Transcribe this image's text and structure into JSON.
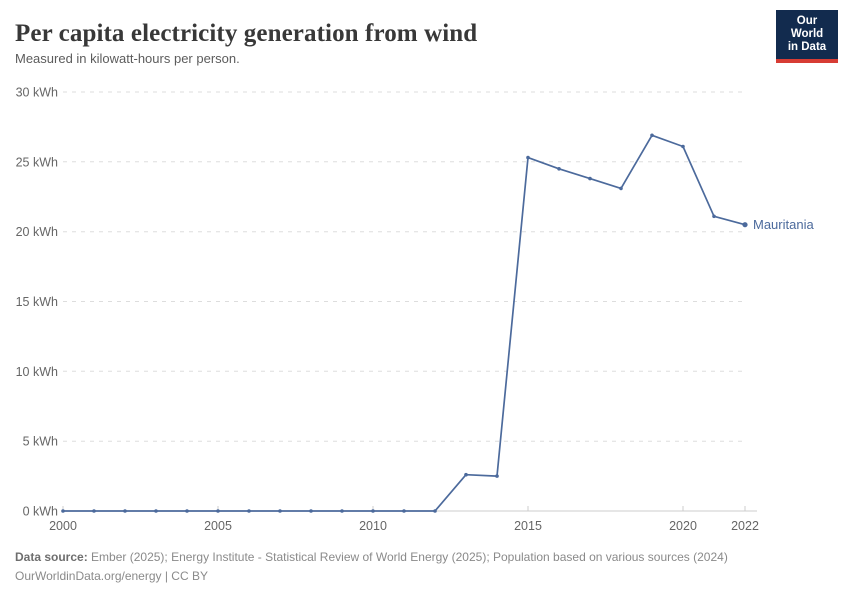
{
  "header": {
    "title": "Per capita electricity generation from wind",
    "subtitle": "Measured in kilowatt-hours per person.",
    "logo": {
      "line1": "Our World",
      "line2": "in Data"
    }
  },
  "footer": {
    "source_label": "Data source:",
    "source_text": "Ember (2025); Energy Institute - Statistical Review of World Energy (2025); Population based on various sources (2024)",
    "citation_line": "OurWorldinData.org/energy | CC BY"
  },
  "chart_data": {
    "type": "line",
    "title": "Per capita electricity generation from wind",
    "subtitle": "Measured in kilowatt-hours per person.",
    "xlabel": "",
    "ylabel": "",
    "x": [
      2000,
      2001,
      2002,
      2003,
      2004,
      2005,
      2006,
      2007,
      2008,
      2009,
      2010,
      2011,
      2012,
      2013,
      2014,
      2015,
      2016,
      2017,
      2018,
      2019,
      2020,
      2021,
      2022
    ],
    "series": [
      {
        "name": "Mauritania",
        "color": "#4c6a9c",
        "values": [
          0,
          0,
          0,
          0,
          0,
          0,
          0,
          0,
          0,
          0,
          0,
          0,
          0,
          2.6,
          2.5,
          25.3,
          24.5,
          23.8,
          23.1,
          26.9,
          26.1,
          21.1,
          20.5
        ]
      }
    ],
    "xlim": [
      2000,
      2022
    ],
    "ylim": [
      0,
      30
    ],
    "x_ticks": [
      2000,
      2005,
      2010,
      2015,
      2020,
      2022
    ],
    "y_ticks": [
      0,
      5,
      10,
      15,
      20,
      25,
      30
    ],
    "y_tick_suffix": " kWh",
    "grid": "horizontal dashed",
    "legend_position": "end-of-line label",
    "colors": {
      "line": "#4c6a9c",
      "grid": "#dddddd",
      "axis": "#cccccc",
      "tick_label": "#666666",
      "logo_background": "#122b4e",
      "logo_underline": "#d73c34"
    }
  }
}
